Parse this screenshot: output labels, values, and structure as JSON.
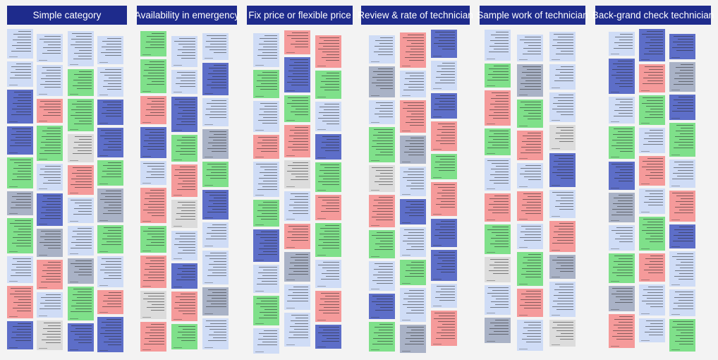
{
  "board": {
    "columns": [
      {
        "title": "Simple category"
      },
      {
        "title": "Availability in emergency"
      },
      {
        "title": "Fix price or flexible price"
      },
      {
        "title": "Review & rate of technician"
      },
      {
        "title": "Sample work of technician"
      },
      {
        "title": "Back-grand check technician"
      }
    ]
  },
  "colors": {
    "header_bg": "#1e2b8c",
    "header_text": "#ffffff",
    "board_bg": "#f3f3f3",
    "sticky_green": "#7fe08a",
    "sticky_blue": "#5d6ec8",
    "sticky_pink": "#f59a9a",
    "sticky_light_blue": "#cfdcf6",
    "sticky_gray": "#a9b2c6",
    "sticky_light_gray": "#dcdcdc"
  }
}
